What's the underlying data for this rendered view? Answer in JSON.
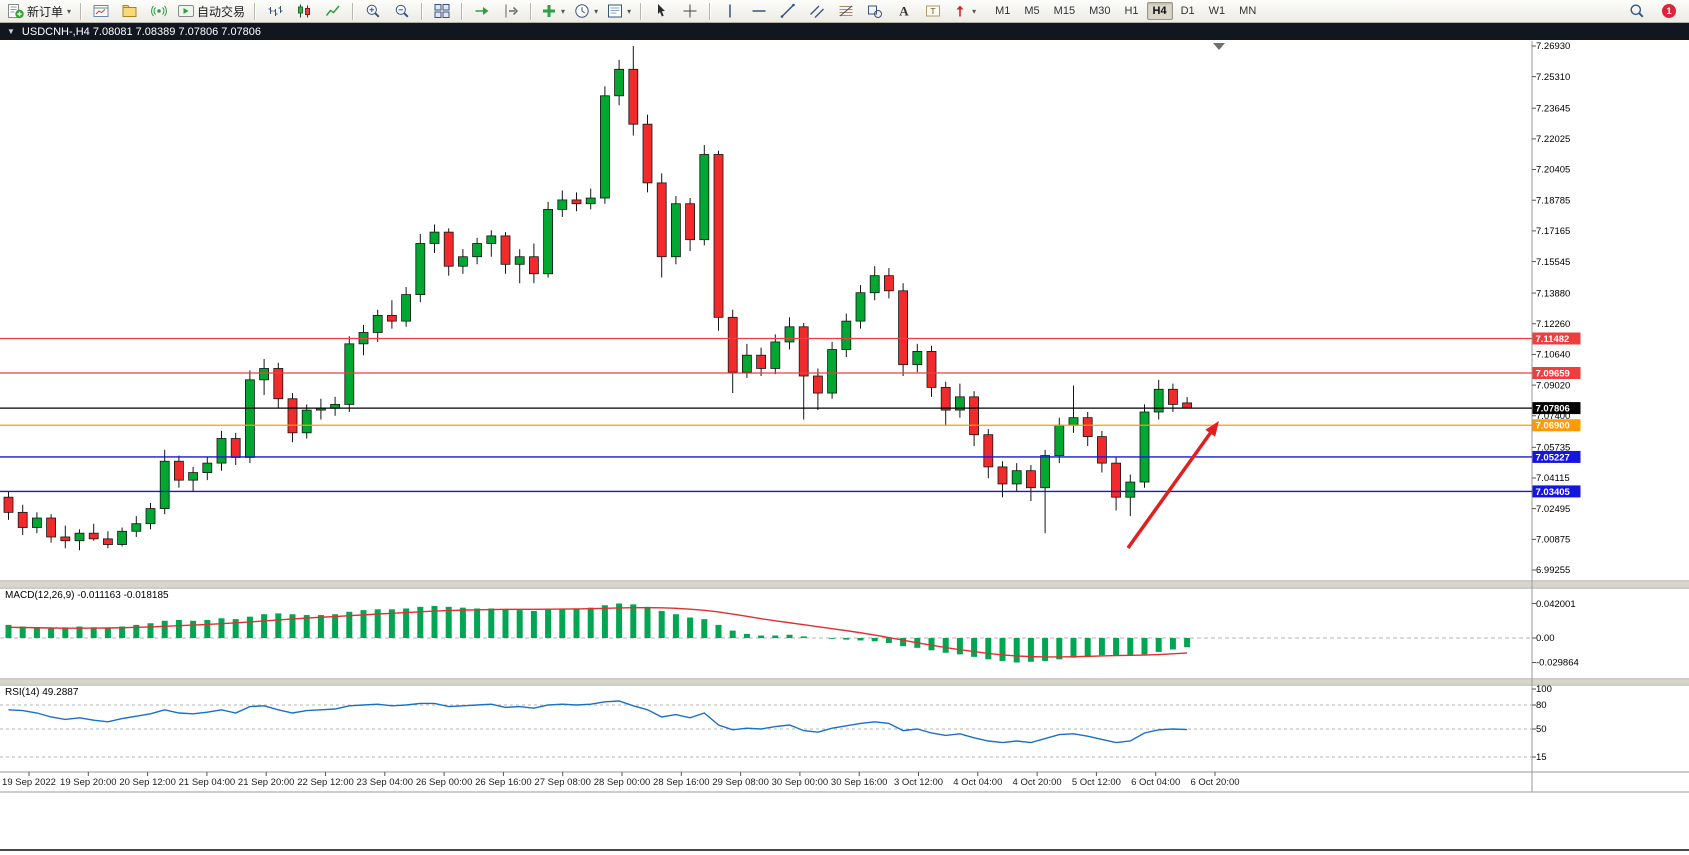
{
  "toolbar": {
    "buttons": [
      {
        "name": "new-order",
        "icon": "new-order",
        "label": "新订单",
        "dropdown": true
      },
      {
        "sep": true
      },
      {
        "name": "new-chart",
        "icon": "new-chart"
      },
      {
        "name": "profiles",
        "icon": "profiles"
      },
      {
        "name": "sounds",
        "icon": "sounds"
      },
      {
        "name": "auto-trading",
        "icon": "auto-trading",
        "label": "自动交易"
      },
      {
        "sep": true
      },
      {
        "name": "bar-chart",
        "icon": "bar-chart"
      },
      {
        "name": "candle-chart",
        "icon": "candle-chart"
      },
      {
        "name": "line-chart",
        "icon": "line-chart"
      },
      {
        "sep": true
      },
      {
        "name": "zoom-in",
        "icon": "zoom-in"
      },
      {
        "name": "zoom-out",
        "icon": "zoom-out"
      },
      {
        "sep": true
      },
      {
        "name": "tile-windows",
        "icon": "tile-windows"
      },
      {
        "sep": true
      },
      {
        "name": "auto-scroll",
        "icon": "auto-scroll"
      },
      {
        "name": "chart-shift",
        "icon": "chart-shift"
      },
      {
        "sep": true
      },
      {
        "name": "indicators",
        "icon": "indicators",
        "dropdown": true
      },
      {
        "name": "periods",
        "icon": "periods",
        "dropdown": true
      },
      {
        "name": "templates",
        "icon": "templates",
        "dropdown": true
      },
      {
        "sep": true
      },
      {
        "name": "cursor",
        "icon": "cursor"
      },
      {
        "name": "crosshair",
        "icon": "crosshair"
      },
      {
        "sep": true
      },
      {
        "name": "vertical-line",
        "icon": "vline"
      },
      {
        "name": "horizontal-line",
        "icon": "hline"
      },
      {
        "name": "trendline",
        "icon": "trendline"
      },
      {
        "name": "equidistant-channel",
        "icon": "channel"
      },
      {
        "name": "fibonacci",
        "icon": "fibonacci"
      },
      {
        "name": "shapes",
        "icon": "shapes"
      },
      {
        "name": "text",
        "icon": "text"
      },
      {
        "name": "text-label",
        "icon": "text-label"
      },
      {
        "name": "arrows",
        "icon": "arrows",
        "dropdown": true
      }
    ],
    "timeframes": [
      {
        "label": "M1"
      },
      {
        "label": "M5"
      },
      {
        "label": "M15"
      },
      {
        "label": "M30"
      },
      {
        "label": "H1"
      },
      {
        "label": "H4",
        "active": true
      },
      {
        "label": "D1"
      },
      {
        "label": "W1"
      },
      {
        "label": "MN"
      }
    ],
    "notification_count": "1"
  },
  "chart_header": {
    "title": "USDCNH-,H4  7.08081 7.08389 7.07806 7.07806"
  },
  "chart_data": {
    "type": "candlestick",
    "symbol": "USDCNH-",
    "timeframe": "H4",
    "ohlc_display": {
      "open": "7.08081",
      "high": "7.08389",
      "low": "7.07806",
      "close": "7.07806"
    },
    "colors": {
      "bull": "#00a832",
      "bear": "#f12b2b",
      "outline": "#151515",
      "resistance": "#f03e3e",
      "support_blue": "#1515e0",
      "pivot_orange": "#ff9b00",
      "current": "#000000",
      "macd_histogram": "#00a651",
      "macd_signal": "#e03131",
      "rsi_line": "#1971c2"
    },
    "y_axis": {
      "min": 6.99255,
      "max": 7.2693,
      "labels": [
        "7.26930",
        "7.25310",
        "7.23645",
        "7.22025",
        "7.20405",
        "7.18785",
        "7.17165",
        "7.15545",
        "7.13880",
        "7.12260",
        "7.10640",
        "7.09020",
        "7.07400",
        "7.05735",
        "7.04115",
        "7.02495",
        "7.00875",
        "6.99255"
      ]
    },
    "x_axis": {
      "labels": [
        "19 Sep 2022",
        "19 Sep 20:00",
        "20 Sep 12:00",
        "21 Sep 04:00",
        "21 Sep 20:00",
        "22 Sep 12:00",
        "23 Sep 04:00",
        "26 Sep 00:00",
        "26 Sep 16:00",
        "27 Sep 08:00",
        "28 Sep 00:00",
        "28 Sep 16:00",
        "29 Sep 08:00",
        "30 Sep 00:00",
        "30 Sep 16:00",
        "3 Oct 12:00",
        "4 Oct 04:00",
        "4 Oct 20:00",
        "5 Oct 12:00",
        "6 Oct 04:00",
        "6 Oct 20:00"
      ]
    },
    "candles": [
      [
        7.031,
        7.034,
        7.019,
        7.023
      ],
      [
        7.023,
        7.027,
        7.011,
        7.015
      ],
      [
        7.015,
        7.023,
        7.012,
        7.02
      ],
      [
        7.02,
        7.022,
        7.007,
        7.01
      ],
      [
        7.01,
        7.016,
        7.004,
        7.008
      ],
      [
        7.008,
        7.014,
        7.003,
        7.012
      ],
      [
        7.012,
        7.017,
        7.008,
        7.009
      ],
      [
        7.009,
        7.013,
        7.004,
        7.006
      ],
      [
        7.006,
        7.015,
        7.005,
        7.013
      ],
      [
        7.013,
        7.021,
        7.01,
        7.017
      ],
      [
        7.017,
        7.028,
        7.014,
        7.025
      ],
      [
        7.025,
        7.056,
        7.022,
        7.05
      ],
      [
        7.05,
        7.053,
        7.036,
        7.04
      ],
      [
        7.04,
        7.047,
        7.034,
        7.044
      ],
      [
        7.044,
        7.052,
        7.04,
        7.049
      ],
      [
        7.049,
        7.066,
        7.045,
        7.062
      ],
      [
        7.062,
        7.065,
        7.048,
        7.052
      ],
      [
        7.052,
        7.098,
        7.049,
        7.093
      ],
      [
        7.093,
        7.104,
        7.085,
        7.099
      ],
      [
        7.099,
        7.102,
        7.078,
        7.083
      ],
      [
        7.083,
        7.086,
        7.06,
        7.065
      ],
      [
        7.065,
        7.08,
        7.062,
        7.077
      ],
      [
        7.077,
        7.083,
        7.072,
        7.078
      ],
      [
        7.078,
        7.084,
        7.074,
        7.08
      ],
      [
        7.08,
        7.116,
        7.076,
        7.112
      ],
      [
        7.112,
        7.122,
        7.106,
        7.118
      ],
      [
        7.118,
        7.13,
        7.113,
        7.127
      ],
      [
        7.127,
        7.135,
        7.12,
        7.124
      ],
      [
        7.124,
        7.142,
        7.121,
        7.138
      ],
      [
        7.138,
        7.17,
        7.134,
        7.165
      ],
      [
        7.165,
        7.175,
        7.16,
        7.171
      ],
      [
        7.171,
        7.173,
        7.148,
        7.153
      ],
      [
        7.153,
        7.162,
        7.149,
        7.158
      ],
      [
        7.158,
        7.168,
        7.154,
        7.165
      ],
      [
        7.165,
        7.172,
        7.158,
        7.169
      ],
      [
        7.169,
        7.171,
        7.149,
        7.154
      ],
      [
        7.154,
        7.162,
        7.144,
        7.158
      ],
      [
        7.158,
        7.165,
        7.144,
        7.149
      ],
      [
        7.149,
        7.187,
        7.147,
        7.183
      ],
      [
        7.183,
        7.193,
        7.179,
        7.188
      ],
      [
        7.188,
        7.192,
        7.182,
        7.186
      ],
      [
        7.186,
        7.194,
        7.183,
        7.189
      ],
      [
        7.189,
        7.248,
        7.186,
        7.243
      ],
      [
        7.243,
        7.262,
        7.238,
        7.257
      ],
      [
        7.257,
        7.2693,
        7.222,
        7.228
      ],
      [
        7.228,
        7.233,
        7.192,
        7.197
      ],
      [
        7.197,
        7.202,
        7.147,
        7.158
      ],
      [
        7.158,
        7.19,
        7.154,
        7.186
      ],
      [
        7.186,
        7.189,
        7.161,
        7.167
      ],
      [
        7.167,
        7.217,
        7.164,
        7.212
      ],
      [
        7.212,
        7.214,
        7.119,
        7.126
      ],
      [
        7.126,
        7.13,
        7.086,
        7.097
      ],
      [
        7.097,
        7.112,
        7.094,
        7.106
      ],
      [
        7.106,
        7.11,
        7.095,
        7.099
      ],
      [
        7.099,
        7.117,
        7.096,
        7.113
      ],
      [
        7.113,
        7.126,
        7.109,
        7.121
      ],
      [
        7.121,
        7.123,
        7.072,
        7.095
      ],
      [
        7.095,
        7.099,
        7.077,
        7.086
      ],
      [
        7.086,
        7.113,
        7.083,
        7.109
      ],
      [
        7.109,
        7.128,
        7.105,
        7.124
      ],
      [
        7.124,
        7.143,
        7.12,
        7.139
      ],
      [
        7.139,
        7.153,
        7.135,
        7.148
      ],
      [
        7.148,
        7.152,
        7.136,
        7.14
      ],
      [
        7.14,
        7.144,
        7.095,
        7.101
      ],
      [
        7.101,
        7.112,
        7.097,
        7.108
      ],
      [
        7.108,
        7.111,
        7.084,
        7.089
      ],
      [
        7.089,
        7.092,
        7.069,
        7.077
      ],
      [
        7.077,
        7.091,
        7.073,
        7.084
      ],
      [
        7.084,
        7.087,
        7.058,
        7.064
      ],
      [
        7.064,
        7.067,
        7.041,
        7.047
      ],
      [
        7.047,
        7.05,
        7.031,
        7.038
      ],
      [
        7.038,
        7.049,
        7.034,
        7.045
      ],
      [
        7.045,
        7.048,
        7.029,
        7.036
      ],
      [
        7.036,
        7.056,
        7.012,
        7.053
      ],
      [
        7.053,
        7.073,
        7.049,
        7.069
      ],
      [
        7.069,
        7.09,
        7.065,
        7.073
      ],
      [
        7.073,
        7.076,
        7.058,
        7.063
      ],
      [
        7.063,
        7.066,
        7.044,
        7.049
      ],
      [
        7.049,
        7.052,
        7.024,
        7.031
      ],
      [
        7.031,
        7.043,
        7.021,
        7.039
      ],
      [
        7.039,
        7.08,
        7.036,
        7.076
      ],
      [
        7.076,
        7.093,
        7.072,
        7.088
      ],
      [
        7.088,
        7.091,
        7.076,
        7.08
      ],
      [
        7.08081,
        7.08389,
        7.07806,
        7.07806
      ]
    ],
    "h_lines": [
      {
        "price": 7.11482,
        "label": "7.11482",
        "color": "#f03e3e"
      },
      {
        "price": 7.09659,
        "label": "7.09659",
        "color": "#f03e3e"
      },
      {
        "price": 7.07806,
        "label": "7.07806",
        "color": "#000000"
      },
      {
        "price": 7.069,
        "label": "7.06900",
        "color": "#ff9b00"
      },
      {
        "price": 7.05227,
        "label": "7.05227",
        "color": "#1515e0"
      },
      {
        "price": 7.03405,
        "label": "7.03405",
        "color": "#1515e0"
      }
    ],
    "arrow": {
      "from": [
        1128,
        548
      ],
      "to": [
        1219,
        421
      ],
      "color": "#e02020"
    },
    "indicators": [
      {
        "name": "MACD",
        "params": "12,26,9",
        "label": "MACD(12,26,9) -0.011163 -0.018185",
        "main_value": "-0.011163",
        "signal_value": "-0.018185",
        "axis_labels": [
          "0.042001",
          "0.00",
          "-0.029864"
        ],
        "histogram": [
          0.016,
          0.014,
          0.013,
          0.012,
          0.013,
          0.014,
          0.013,
          0.012,
          0.014,
          0.016,
          0.018,
          0.021,
          0.022,
          0.021,
          0.022,
          0.024,
          0.023,
          0.026,
          0.029,
          0.03,
          0.029,
          0.028,
          0.028,
          0.029,
          0.032,
          0.034,
          0.035,
          0.035,
          0.036,
          0.038,
          0.039,
          0.038,
          0.037,
          0.036,
          0.036,
          0.035,
          0.034,
          0.033,
          0.035,
          0.036,
          0.036,
          0.037,
          0.04,
          0.042,
          0.041,
          0.038,
          0.033,
          0.029,
          0.025,
          0.023,
          0.016,
          0.009,
          0.005,
          0.003,
          0.003,
          0.004,
          0.002,
          0.0,
          -0.001,
          -0.002,
          -0.003,
          -0.004,
          -0.006,
          -0.01,
          -0.012,
          -0.015,
          -0.018,
          -0.02,
          -0.023,
          -0.026,
          -0.028,
          -0.0299,
          -0.029,
          -0.028,
          -0.026,
          -0.024,
          -0.022,
          -0.021,
          -0.022,
          -0.022,
          -0.02,
          -0.017,
          -0.014,
          -0.0112
        ],
        "signal": [
          0.013,
          0.0128,
          0.0125,
          0.0122,
          0.012,
          0.012,
          0.0121,
          0.0122,
          0.0125,
          0.013,
          0.0135,
          0.0142,
          0.015,
          0.0158,
          0.0166,
          0.0175,
          0.0185,
          0.0196,
          0.0208,
          0.022,
          0.0232,
          0.0243,
          0.0253,
          0.0262,
          0.0272,
          0.0282,
          0.0292,
          0.0301,
          0.031,
          0.0319,
          0.0328,
          0.0335,
          0.034,
          0.0344,
          0.0347,
          0.0349,
          0.035,
          0.035,
          0.0351,
          0.0353,
          0.0355,
          0.0358,
          0.0362,
          0.0367,
          0.037,
          0.037,
          0.0368,
          0.0362,
          0.0352,
          0.0338,
          0.0318,
          0.0292,
          0.0264,
          0.0236,
          0.021,
          0.0186,
          0.0162,
          0.0138,
          0.0114,
          0.009,
          0.0064,
          0.0036,
          0.0006,
          -0.0026,
          -0.0058,
          -0.0088,
          -0.0116,
          -0.0142,
          -0.0166,
          -0.0188,
          -0.0206,
          -0.0219,
          -0.0227,
          -0.0231,
          -0.0231,
          -0.0228,
          -0.0224,
          -0.0219,
          -0.0214,
          -0.0211,
          -0.0208,
          -0.0202,
          -0.0193,
          -0.0182
        ]
      },
      {
        "name": "RSI",
        "params": "14",
        "label": "RSI(14) 49.2887",
        "value": "49.2887",
        "axis_labels": [
          "100",
          "80",
          "50",
          "15"
        ],
        "levels": [
          80,
          50,
          15
        ],
        "series": [
          74,
          73,
          70,
          65,
          62,
          64,
          61,
          59,
          63,
          66,
          69,
          74,
          70,
          69,
          71,
          74,
          70,
          78,
          79,
          74,
          70,
          73,
          74,
          75,
          79,
          80,
          81,
          79,
          80,
          82,
          82,
          78,
          79,
          80,
          81,
          77,
          78,
          76,
          80,
          81,
          80,
          81,
          84,
          85,
          79,
          74,
          65,
          68,
          64,
          70,
          55,
          49,
          51,
          50,
          53,
          55,
          48,
          46,
          51,
          54,
          57,
          59,
          57,
          48,
          50,
          45,
          42,
          44,
          39,
          35,
          33,
          35,
          33,
          38,
          43,
          44,
          41,
          37,
          33,
          35,
          45,
          49,
          50,
          49.29
        ]
      }
    ]
  }
}
